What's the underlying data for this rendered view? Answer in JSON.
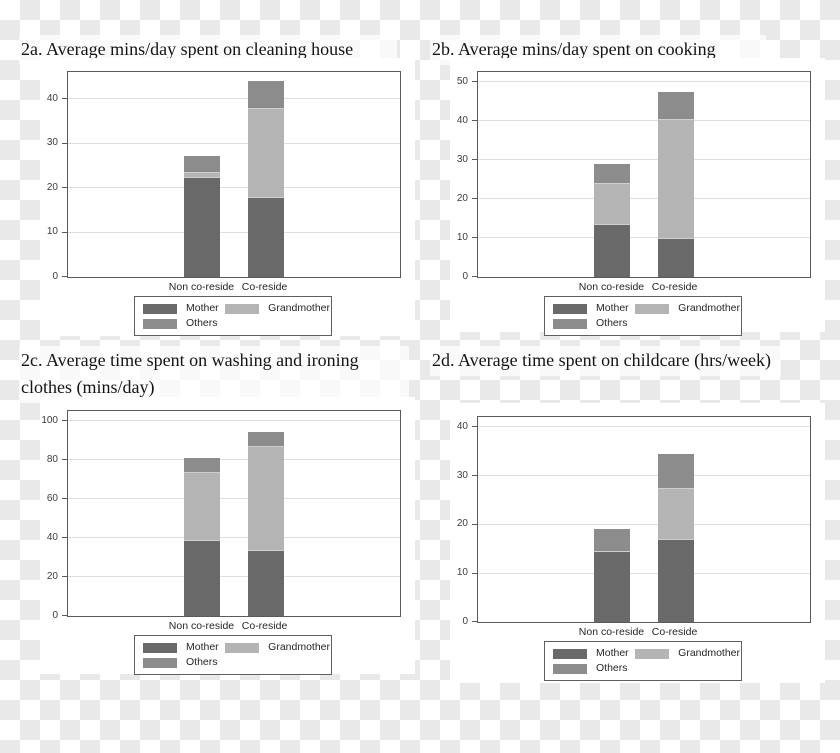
{
  "figure": {
    "description": "Four-panel stacked bar figure on transparency checkerboard",
    "panels": [
      "2a",
      "2b",
      "2c",
      "2d"
    ]
  },
  "colors": {
    "mother": "#696969",
    "grandmother": "#b4b4b4",
    "others": "#8c8c8c",
    "frame_border": "#5a5a5a",
    "gridline": "#dedede",
    "title_text": "#141414",
    "axis_text": "#3d3d3d",
    "checker_light": "#e9e9e9",
    "panel_background": "#ffffff"
  },
  "chart_data": [
    {
      "id": "2a",
      "type": "bar",
      "stacked": true,
      "title": "2a. Average mins/day spent on cleaning house",
      "categories": [
        "Non co-reside",
        "Co-reside"
      ],
      "series": [
        {
          "name": "Mother",
          "values": [
            22.5,
            18
          ]
        },
        {
          "name": "Grandmother",
          "values": [
            1,
            20
          ]
        },
        {
          "name": "Others",
          "values": [
            3.7,
            6
          ]
        }
      ],
      "totals": [
        27.2,
        44
      ],
      "yticks": [
        0,
        10,
        20,
        30,
        40
      ],
      "ylim": [
        0,
        46
      ],
      "xlabel": "",
      "ylabel": "",
      "grid": "horizontal",
      "legend_position": "bottom"
    },
    {
      "id": "2b",
      "type": "bar",
      "stacked": true,
      "title": "2b. Average mins/day spent on cooking",
      "categories": [
        "Non co-reside",
        "Co-reside"
      ],
      "series": [
        {
          "name": "Mother",
          "values": [
            13.5,
            10
          ]
        },
        {
          "name": "Grandmother",
          "values": [
            10.5,
            30.5
          ]
        },
        {
          "name": "Others",
          "values": [
            5,
            7
          ]
        }
      ],
      "totals": [
        29,
        47.5
      ],
      "yticks": [
        0,
        10,
        20,
        30,
        40,
        50
      ],
      "ylim": [
        0,
        52.5
      ],
      "xlabel": "",
      "ylabel": "",
      "grid": "horizontal",
      "legend_position": "bottom"
    },
    {
      "id": "2c",
      "type": "bar",
      "stacked": true,
      "title": "2c. Average time spent on washing and ironing clothes (mins/day)",
      "categories": [
        "Non co-reside",
        "Co-reside"
      ],
      "series": [
        {
          "name": "Mother",
          "values": [
            39,
            34
          ]
        },
        {
          "name": "Grandmother",
          "values": [
            35,
            53
          ]
        },
        {
          "name": "Others",
          "values": [
            7,
            7.5
          ]
        }
      ],
      "totals": [
        81,
        94.5
      ],
      "yticks": [
        0,
        20,
        40,
        60,
        80,
        100
      ],
      "ylim": [
        0,
        105
      ],
      "xlabel": "",
      "ylabel": "",
      "grid": "horizontal",
      "legend_position": "bottom"
    },
    {
      "id": "2d",
      "type": "bar",
      "stacked": true,
      "title": "2d. Average time spent on childcare (hrs/week)",
      "categories": [
        "Non co-reside",
        "Co-reside"
      ],
      "series": [
        {
          "name": "Mother",
          "values": [
            14.5,
            17
          ]
        },
        {
          "name": "Grandmother",
          "values": [
            0,
            10.5
          ]
        },
        {
          "name": "Others",
          "values": [
            4.5,
            7
          ]
        }
      ],
      "totals": [
        19,
        34.5
      ],
      "yticks": [
        0,
        10,
        20,
        30,
        40
      ],
      "ylim": [
        0,
        42
      ],
      "xlabel": "",
      "ylabel": "",
      "grid": "horizontal",
      "legend_position": "bottom"
    }
  ]
}
